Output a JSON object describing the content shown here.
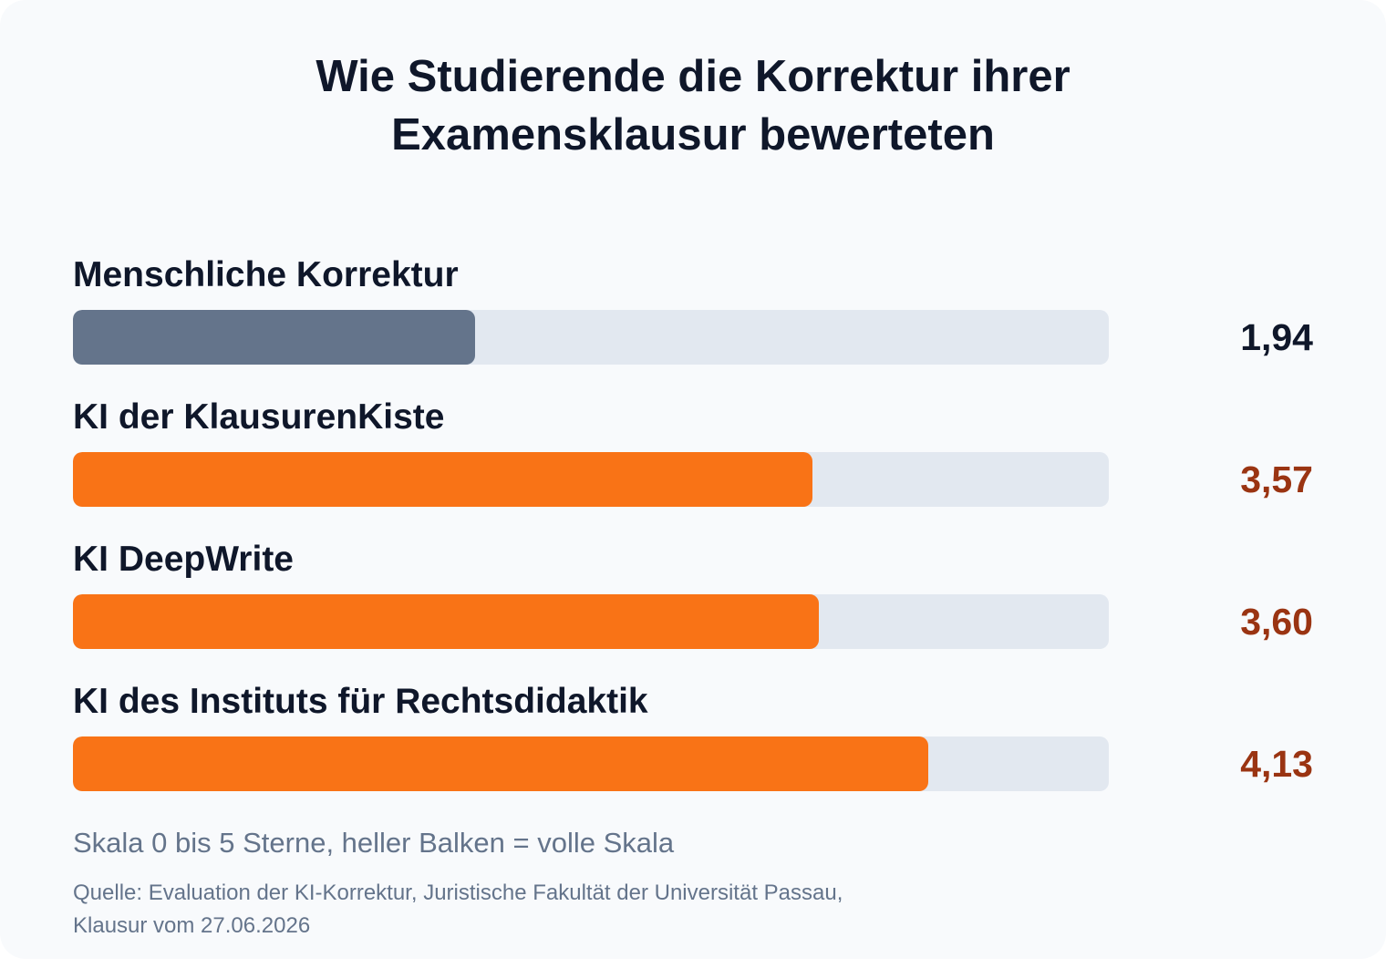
{
  "chart_data": {
    "type": "bar",
    "orientation": "horizontal",
    "title_lines": [
      "Wie Studierende die Korrektur ihrer",
      "Examensklausur bewerteten"
    ],
    "categories": [
      "Menschliche Korrektur",
      "KI der KlausurenKiste",
      "KI DeepWrite",
      "KI des Instituts für Rechtsdidaktik"
    ],
    "values": [
      1.94,
      3.57,
      3.6,
      4.13
    ],
    "value_labels": [
      "1,94",
      "3,57",
      "3,60",
      "4,13"
    ],
    "xlim": [
      0,
      5
    ],
    "grid": false,
    "colors": {
      "bars": [
        "#64748b",
        "#f97316",
        "#f97316",
        "#f97316"
      ],
      "value_labels": [
        "#0f172a",
        "#9a3412",
        "#9a3412",
        "#9a3412"
      ],
      "track": "#e2e8f0"
    },
    "annotations": {
      "scale_note": "Skala 0 bis 5 Sterne, heller Balken = volle Skala",
      "source_lines": [
        "Quelle: Evaluation der KI-Korrektur, Juristische Fakultät der Universität Passau,",
        "Klausur vom 27.06.2026"
      ]
    }
  }
}
